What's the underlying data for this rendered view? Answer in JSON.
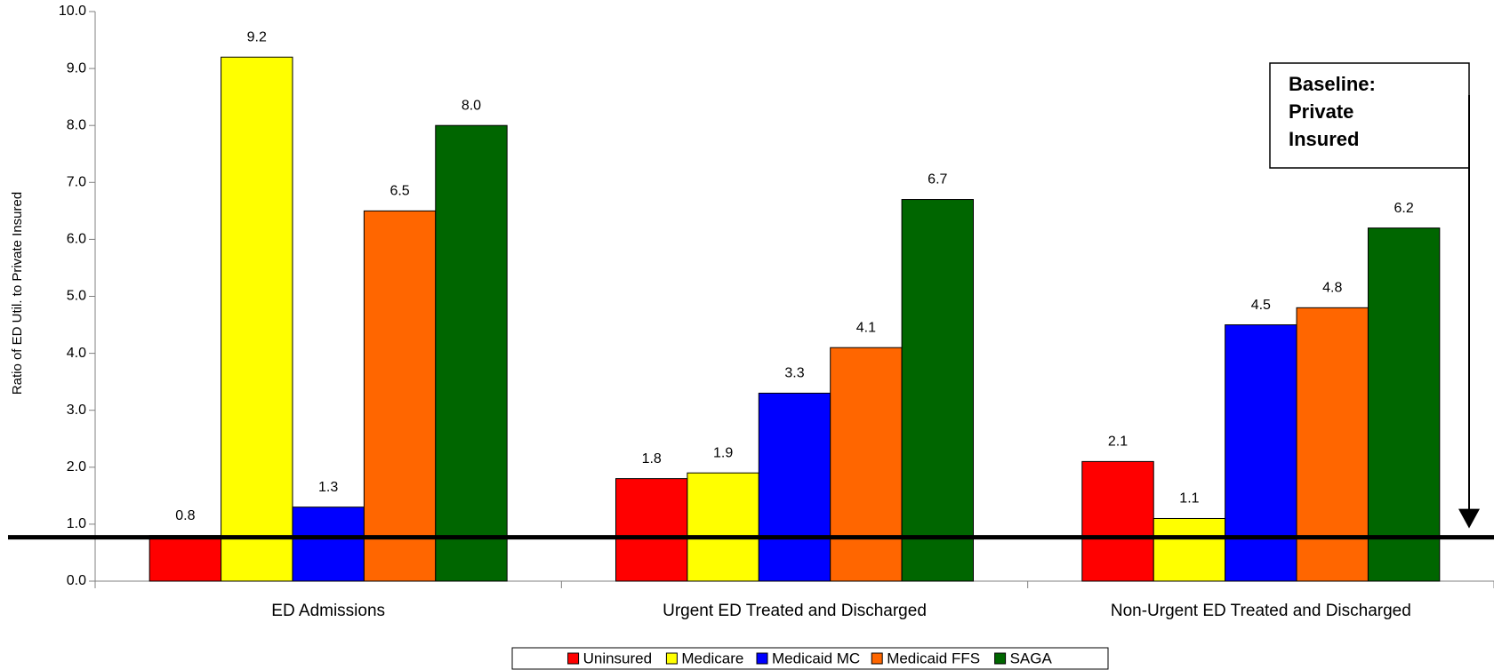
{
  "chart_data": {
    "type": "bar",
    "y_label": "Ratio of ED Util. to Private Insured",
    "categories": [
      "ED Admissions",
      "Urgent ED Treated and Discharged",
      "Non-Urgent ED Treated and Discharged"
    ],
    "series": [
      {
        "name": "Uninsured",
        "color": "#ff0000",
        "values": [
          0.8,
          1.8,
          2.1
        ],
        "value_labels": [
          "0.8",
          "1.8",
          "2.1"
        ]
      },
      {
        "name": "Medicare",
        "color": "#ffff00",
        "values": [
          9.2,
          1.9,
          1.1
        ],
        "value_labels": [
          "9.2",
          "1.9",
          "1.1"
        ]
      },
      {
        "name": "Medicaid MC",
        "color": "#0000ff",
        "values": [
          1.3,
          3.3,
          4.5
        ],
        "value_labels": [
          "1.3",
          "3.3",
          "4.5"
        ]
      },
      {
        "name": "Medicaid FFS",
        "color": "#ff6600",
        "values": [
          6.5,
          4.1,
          4.8
        ],
        "value_labels": [
          "6.5",
          "4.1",
          "4.8"
        ]
      },
      {
        "name": "SAGA",
        "color": "#006600",
        "values": [
          8.0,
          6.7,
          6.2
        ],
        "value_labels": [
          "8.0",
          "6.7",
          "6.2"
        ]
      }
    ],
    "ylim": [
      0,
      10
    ],
    "yticks": [
      {
        "value": 0,
        "label": "0.0"
      },
      {
        "value": 1,
        "label": "1.0"
      },
      {
        "value": 2,
        "label": "2.0"
      },
      {
        "value": 3,
        "label": "3.0"
      },
      {
        "value": 4,
        "label": "4.0"
      },
      {
        "value": 5,
        "label": "5.0"
      },
      {
        "value": 6,
        "label": "6.0"
      },
      {
        "value": 7,
        "label": "7.0"
      },
      {
        "value": 8,
        "label": "8.0"
      },
      {
        "value": 9,
        "label": "9.0"
      },
      {
        "value": 10,
        "label": "10.0"
      }
    ],
    "baseline": {
      "value": 0.77,
      "label_lines": [
        "Baseline:",
        "Private",
        "Insured"
      ]
    },
    "legend": "bottom"
  }
}
